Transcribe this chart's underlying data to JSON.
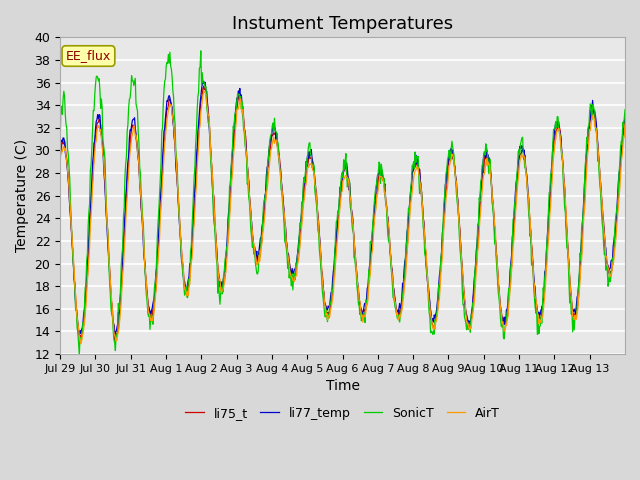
{
  "title": "Instument Temperatures",
  "ylabel": "Temperature (C)",
  "xlabel": "Time",
  "ylim": [
    12,
    40
  ],
  "annotation_text": "EE_flux",
  "legend": [
    "li75_t",
    "li77_temp",
    "SonicT",
    "AirT"
  ],
  "colors": {
    "li75_t": "#cc0000",
    "li77_temp": "#0000cc",
    "SonicT": "#00cc00",
    "AirT": "#ff9900"
  },
  "fig_bg": "#d8d8d8",
  "plot_bg": "#e8e8e8",
  "xtick_labels": [
    "Jul 29",
    "Jul 30",
    "Jul 31",
    "Aug 1",
    "Aug 2",
    "Aug 3",
    "Aug 4",
    "Aug 5",
    "Aug 6",
    "Aug 7",
    "Aug 8",
    "Aug 9",
    "Aug 10",
    "Aug 11",
    "Aug 12",
    "Aug 13"
  ],
  "title_fontsize": 13,
  "axis_fontsize": 10
}
